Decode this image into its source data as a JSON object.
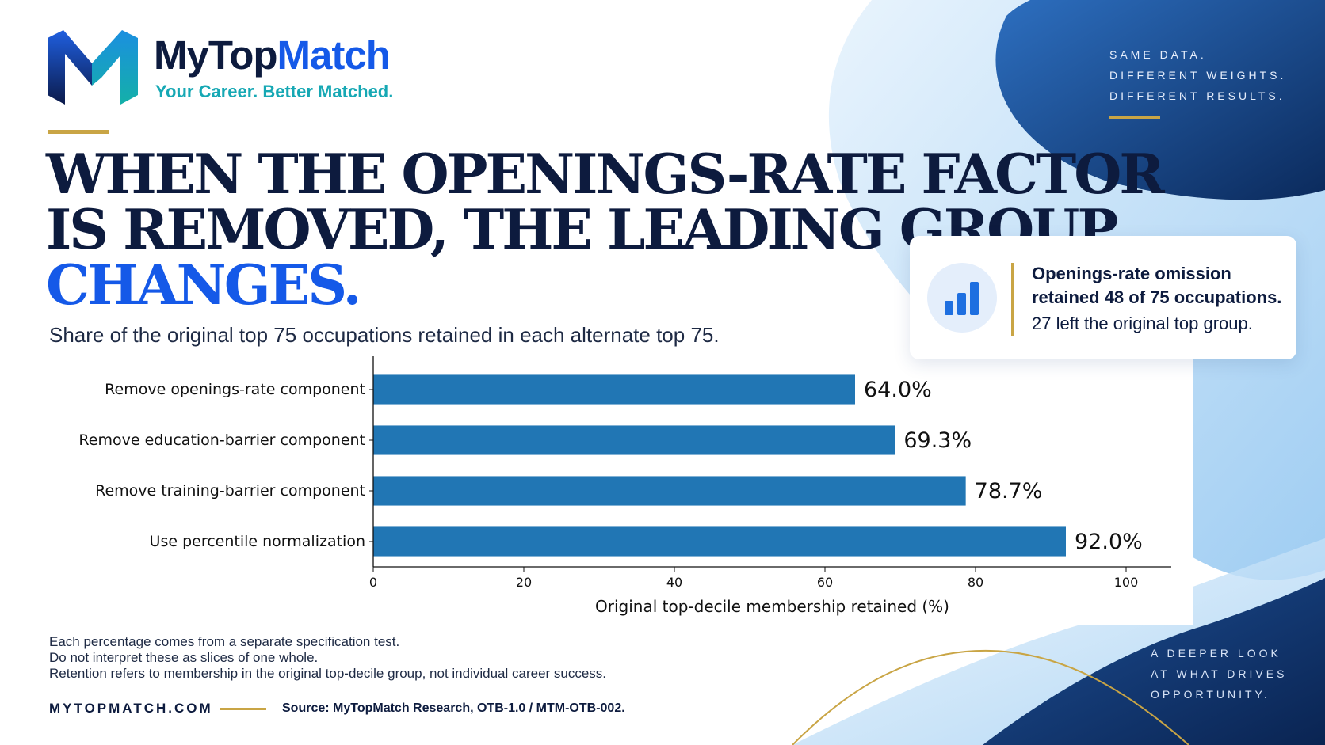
{
  "brand": {
    "name_part1": "MyTop",
    "name_part2": "Match",
    "tagline": "Your Career. Better Matched."
  },
  "headline": {
    "line1": "WHEN THE OPENINGS-RATE FACTOR",
    "line2": "IS REMOVED, THE LEADING GROUP",
    "line3": "CHANGES."
  },
  "subtitle": "Share of the original top 75 occupations retained in each alternate top 75.",
  "side_top": [
    "SAME DATA.",
    "DIFFERENT WEIGHTS.",
    "DIFFERENT RESULTS."
  ],
  "callout": {
    "icon": "bar-chart-icon",
    "line1": "Openings-rate omission",
    "line2": "retained 48 of 75 occupations.",
    "line3": "27 left the original top group."
  },
  "chart_data": {
    "type": "bar",
    "orientation": "horizontal",
    "categories": [
      "Remove openings-rate component",
      "Remove education-barrier component",
      "Remove training-barrier component",
      "Use percentile normalization"
    ],
    "values": [
      64.0,
      69.3,
      78.7,
      92.0
    ],
    "data_labels": [
      "64.0%",
      "69.3%",
      "78.7%",
      "92.0%"
    ],
    "xlabel": "Original top-decile membership retained (%)",
    "xlim": [
      0,
      106
    ],
    "xticks": [
      0,
      20,
      40,
      60,
      80,
      100
    ],
    "bar_color": "#2176b4",
    "grid": false
  },
  "notes": [
    "Each percentage comes from a separate specification test.",
    "Do not interpret these as slices of one whole.",
    "Retention refers to membership in the original top-decile group, not individual career success."
  ],
  "footer": {
    "site": "MYTOPMATCH.COM",
    "source": "Source: MyTopMatch Research, OTB-1.0 / MTM-OTB-002."
  },
  "side_bottom": [
    "A DEEPER LOOK",
    "AT WHAT DRIVES",
    "OPPORTUNITY."
  ],
  "colors": {
    "navy": "#0d1b3e",
    "brand_blue": "#1559e8",
    "teal": "#16a8b4",
    "gold": "#c9a545"
  }
}
